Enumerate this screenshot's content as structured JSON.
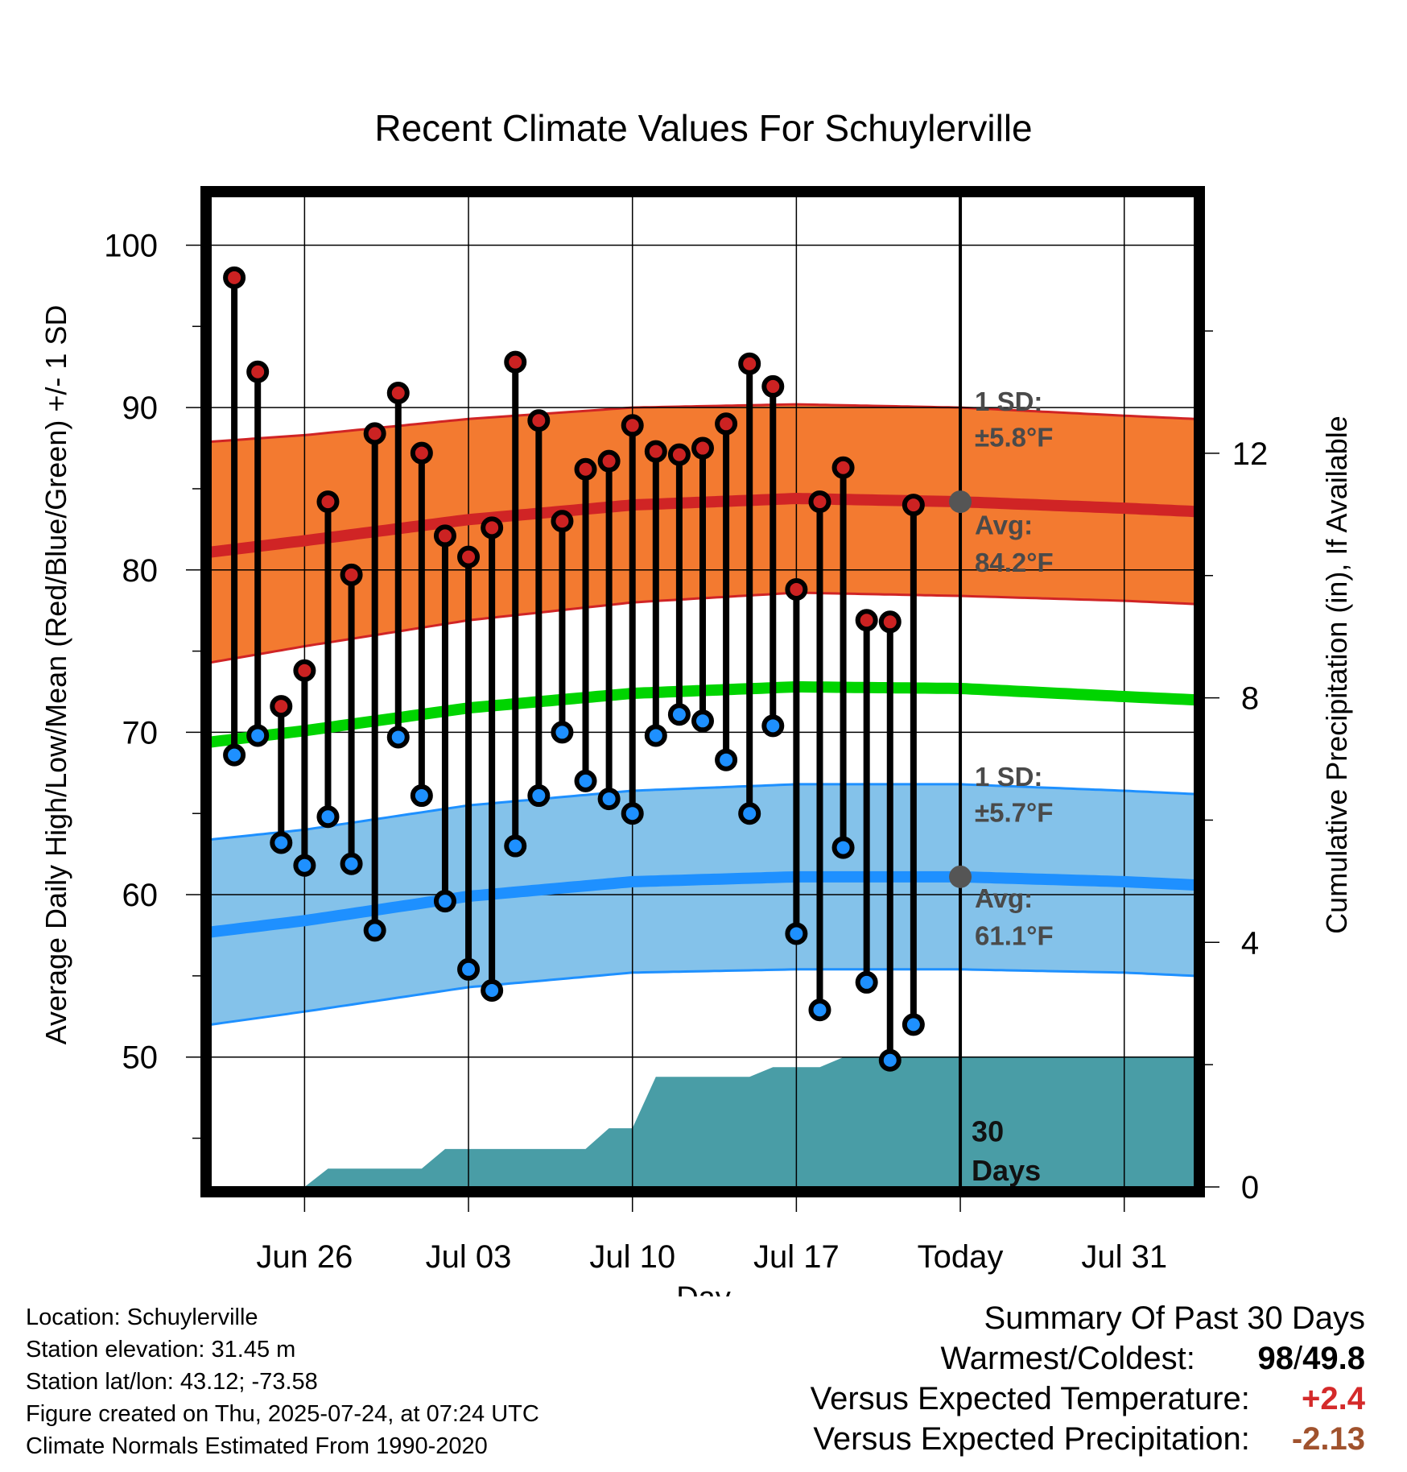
{
  "chart_data": {
    "type": "line",
    "title": "Recent Climate Values For Schuylerville",
    "xlabel": "Day",
    "ylabel": "Average Daily High/Low/Mean (Red/Blue/Green) +/- 1 SD",
    "y2label": "Cumulative Precipitation (in), If Available",
    "ylim": [
      42,
      103
    ],
    "y2lim": [
      0,
      16.2
    ],
    "xlim": [
      "2025-06-22",
      "2025-08-03"
    ],
    "x_ticks": [
      {
        "date": "2025-06-26",
        "label": "Jun 26"
      },
      {
        "date": "2025-07-03",
        "label": "Jul 03"
      },
      {
        "date": "2025-07-10",
        "label": "Jul 10"
      },
      {
        "date": "2025-07-17",
        "label": "Jul 17"
      },
      {
        "date": "2025-07-24",
        "label": "Today"
      },
      {
        "date": "2025-07-31",
        "label": "Jul 31"
      }
    ],
    "y_ticks": [
      50,
      60,
      70,
      80,
      90,
      100
    ],
    "y2_ticks": [
      0,
      4,
      8,
      12
    ],
    "grid": true,
    "today": "2025-07-24",
    "observed": [
      {
        "date": "2025-06-23",
        "high": 98.0,
        "low": 68.6
      },
      {
        "date": "2025-06-24",
        "high": 92.2,
        "low": 69.8
      },
      {
        "date": "2025-06-25",
        "high": 71.6,
        "low": 63.2
      },
      {
        "date": "2025-06-26",
        "high": 73.8,
        "low": 61.8
      },
      {
        "date": "2025-06-27",
        "high": 84.2,
        "low": 64.8
      },
      {
        "date": "2025-06-28",
        "high": 79.7,
        "low": 61.9
      },
      {
        "date": "2025-06-29",
        "high": 88.4,
        "low": 57.8
      },
      {
        "date": "2025-06-30",
        "high": 90.9,
        "low": 69.7
      },
      {
        "date": "2025-07-01",
        "high": 87.2,
        "low": 66.1
      },
      {
        "date": "2025-07-02",
        "high": 82.1,
        "low": 59.6
      },
      {
        "date": "2025-07-03",
        "high": 80.8,
        "low": 55.4
      },
      {
        "date": "2025-07-04",
        "high": 82.6,
        "low": 54.1
      },
      {
        "date": "2025-07-05",
        "high": 92.8,
        "low": 63.0
      },
      {
        "date": "2025-07-06",
        "high": 89.2,
        "low": 66.1
      },
      {
        "date": "2025-07-07",
        "high": 83.0,
        "low": 70.0
      },
      {
        "date": "2025-07-08",
        "high": 86.2,
        "low": 67.0
      },
      {
        "date": "2025-07-09",
        "high": 86.7,
        "low": 65.9
      },
      {
        "date": "2025-07-10",
        "high": 88.9,
        "low": 65.0
      },
      {
        "date": "2025-07-11",
        "high": 87.3,
        "low": 69.8
      },
      {
        "date": "2025-07-12",
        "high": 87.1,
        "low": 71.1
      },
      {
        "date": "2025-07-13",
        "high": 87.5,
        "low": 70.7
      },
      {
        "date": "2025-07-14",
        "high": 89.0,
        "low": 68.3
      },
      {
        "date": "2025-07-15",
        "high": 92.7,
        "low": 65.0
      },
      {
        "date": "2025-07-16",
        "high": 91.3,
        "low": 70.4
      },
      {
        "date": "2025-07-17",
        "high": 78.8,
        "low": 57.6
      },
      {
        "date": "2025-07-18",
        "high": 84.2,
        "low": 52.9
      },
      {
        "date": "2025-07-19",
        "high": 86.3,
        "low": 62.9
      },
      {
        "date": "2025-07-20",
        "high": 76.9,
        "low": 54.6
      },
      {
        "date": "2025-07-21",
        "high": 76.8,
        "low": 49.8
      },
      {
        "date": "2025-07-22",
        "high": 84.0,
        "low": 52.0
      }
    ],
    "normals": [
      {
        "date": "2025-06-22",
        "high": 81.1,
        "high_sd": 6.8,
        "low": 57.7,
        "low_sd": 5.7,
        "mean": 69.4
      },
      {
        "date": "2025-06-26",
        "high": 81.8,
        "high_sd": 6.5,
        "low": 58.4,
        "low_sd": 5.6,
        "mean": 70.1
      },
      {
        "date": "2025-07-03",
        "high": 83.1,
        "high_sd": 6.2,
        "low": 59.9,
        "low_sd": 5.6,
        "mean": 71.5
      },
      {
        "date": "2025-07-10",
        "high": 84.0,
        "high_sd": 6.0,
        "low": 60.8,
        "low_sd": 5.6,
        "mean": 72.4
      },
      {
        "date": "2025-07-17",
        "high": 84.4,
        "high_sd": 5.8,
        "low": 61.1,
        "low_sd": 5.7,
        "mean": 72.8
      },
      {
        "date": "2025-07-24",
        "high": 84.2,
        "high_sd": 5.8,
        "low": 61.1,
        "low_sd": 5.7,
        "mean": 72.7
      },
      {
        "date": "2025-07-31",
        "high": 83.8,
        "high_sd": 5.7,
        "low": 60.8,
        "low_sd": 5.6,
        "mean": 72.2
      },
      {
        "date": "2025-08-03",
        "high": 83.6,
        "high_sd": 5.7,
        "low": 60.6,
        "low_sd": 5.6,
        "mean": 72.0
      }
    ],
    "precip_cumulative": [
      {
        "date": "2025-06-22",
        "value": 0.0
      },
      {
        "date": "2025-06-26",
        "value": 0.0
      },
      {
        "date": "2025-06-27",
        "value": 0.3
      },
      {
        "date": "2025-07-01",
        "value": 0.3
      },
      {
        "date": "2025-07-02",
        "value": 0.62
      },
      {
        "date": "2025-07-08",
        "value": 0.62
      },
      {
        "date": "2025-07-09",
        "value": 0.96
      },
      {
        "date": "2025-07-10",
        "value": 0.96
      },
      {
        "date": "2025-07-11",
        "value": 1.8
      },
      {
        "date": "2025-07-15",
        "value": 1.8
      },
      {
        "date": "2025-07-16",
        "value": 1.96
      },
      {
        "date": "2025-07-18",
        "value": 1.96
      },
      {
        "date": "2025-07-19",
        "value": 2.12
      },
      {
        "date": "2025-08-03",
        "value": 2.12
      }
    ],
    "annotations": {
      "high_sd_label": "1 SD:",
      "high_sd_value": "±5.8°F",
      "high_avg_label": "Avg:",
      "high_avg_value": "84.2°F",
      "high_avg": 84.2,
      "low_sd_label": "1 SD:",
      "low_sd_value": "±5.7°F",
      "low_avg_label": "Avg:",
      "low_avg_value": "61.1°F",
      "low_avg": 61.1,
      "days_line1": "30",
      "days_line2": "Days"
    }
  },
  "colors": {
    "sd_high_band": "#f37a30",
    "high_line": "#d02425",
    "mean_line": "#00d400",
    "sd_low_band": "#84c2ea",
    "low_line": "#1e90ff",
    "precip_fill": "#499da6",
    "high_dot": "#cc2222",
    "low_dot": "#1e90ff",
    "avg_dot": "#555555",
    "temp_positive": "#d42a2a",
    "precip_negative": "#a0522d"
  },
  "info": {
    "location": "Location: Schuylerville",
    "elevation": "Station elevation: 31.45 m",
    "latlon": "Station lat/lon: 43.12; -73.58",
    "created": "Figure created on Thu, 2025-07-24, at 07:24 UTC",
    "normals": "Climate Normals Estimated From 1990-2020"
  },
  "summary": {
    "heading": "Summary Of Past 30 Days",
    "warmest_coldest_label": "Warmest/Coldest:",
    "warmest": "98",
    "separator": "/",
    "coldest": "49.8",
    "temp_label": "Versus Expected Temperature:",
    "temp_value": "+2.4",
    "precip_label": "Versus Expected Precipitation:",
    "precip_value": "-2.13"
  }
}
